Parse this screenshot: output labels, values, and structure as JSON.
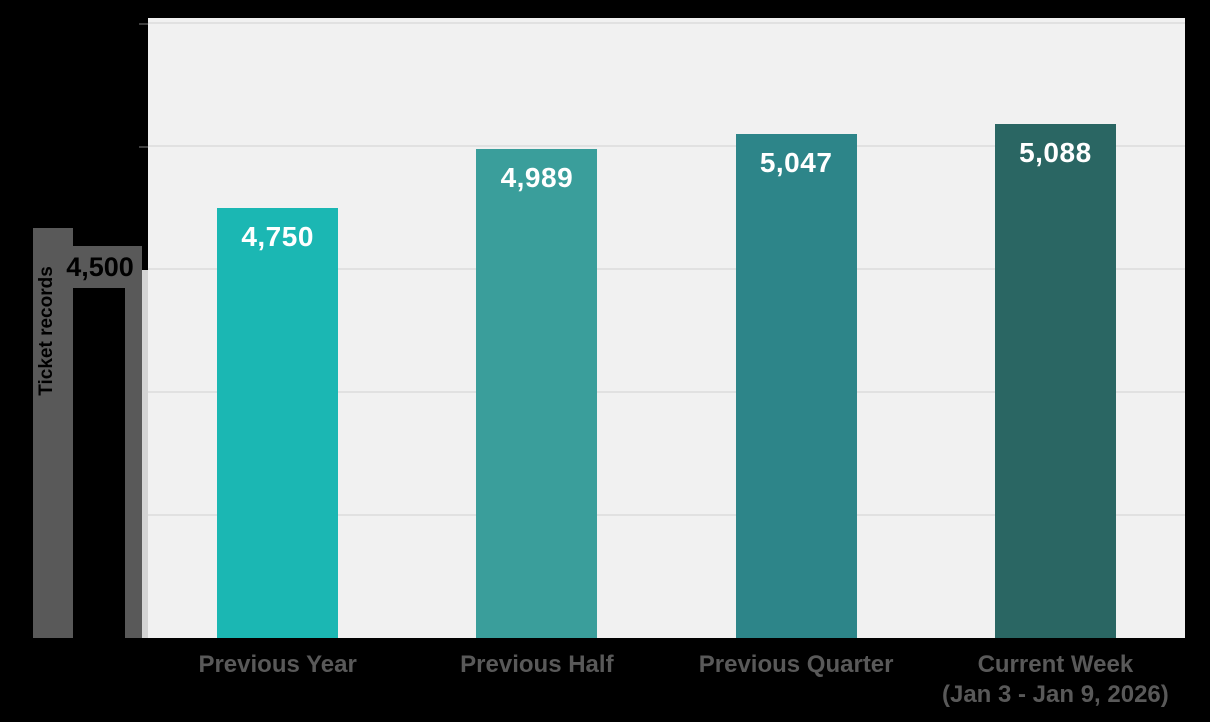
{
  "page": {
    "background_color": "#000000"
  },
  "chart_data": {
    "type": "bar",
    "title": "",
    "categories": [
      {
        "label": "Previous Year",
        "sub_label": ""
      },
      {
        "label": "Previous Half",
        "sub_label": ""
      },
      {
        "label": "Previous Quarter",
        "sub_label": ""
      },
      {
        "label": "Current Week",
        "sub_label": "(Jan 3 - Jan 9, 2026)"
      }
    ],
    "values": [
      4750,
      4989,
      5047,
      5088
    ],
    "value_labels": [
      "4,750",
      "4,989",
      "5,047",
      "5,088"
    ],
    "bar_colors": [
      "#1bb7b3",
      "#3a9e9b",
      "#2d8589",
      "#2a6663"
    ],
    "xlabel": "",
    "ylabel": "Ticket records",
    "ylim": [
      3000,
      5500
    ],
    "ytick_step": 500,
    "visible_ytick_label": "4,500",
    "grid": "horizontal gridlines on",
    "legend": "none",
    "plot_background": "#f1f1f1",
    "gridline_color": "#e1e1e1",
    "category_label_color": "#595959",
    "value_label_color": "#ffffff",
    "axis_artifact_color": "#595959"
  }
}
